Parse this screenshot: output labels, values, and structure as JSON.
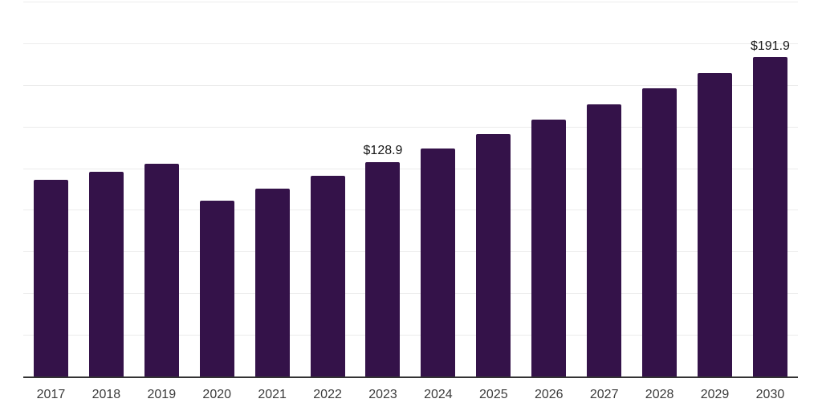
{
  "chart_data": {
    "type": "bar",
    "title": "",
    "xlabel": "",
    "ylabel": "",
    "categories": [
      "2017",
      "2018",
      "2019",
      "2020",
      "2021",
      "2022",
      "2023",
      "2024",
      "2025",
      "2026",
      "2027",
      "2028",
      "2029",
      "2030"
    ],
    "values": [
      118.3,
      122.7,
      127.8,
      105.3,
      113.0,
      120.3,
      128.9,
      137.0,
      145.7,
      154.4,
      163.4,
      172.9,
      182.3,
      191.9
    ],
    "data_labels": {
      "2023": "$128.9",
      "2030": "$191.9"
    },
    "ylim": [
      0,
      225
    ],
    "gridline_step": 25,
    "grid": "horizontal",
    "y_axis_labels_visible": false,
    "legend": "none",
    "colors": {
      "bar": "#341249",
      "axis": "#333333",
      "gridline": "#ececec",
      "tick_text": "#3c3c3c",
      "data_label_text": "#1a1a1a",
      "background": "#ffffff"
    }
  }
}
